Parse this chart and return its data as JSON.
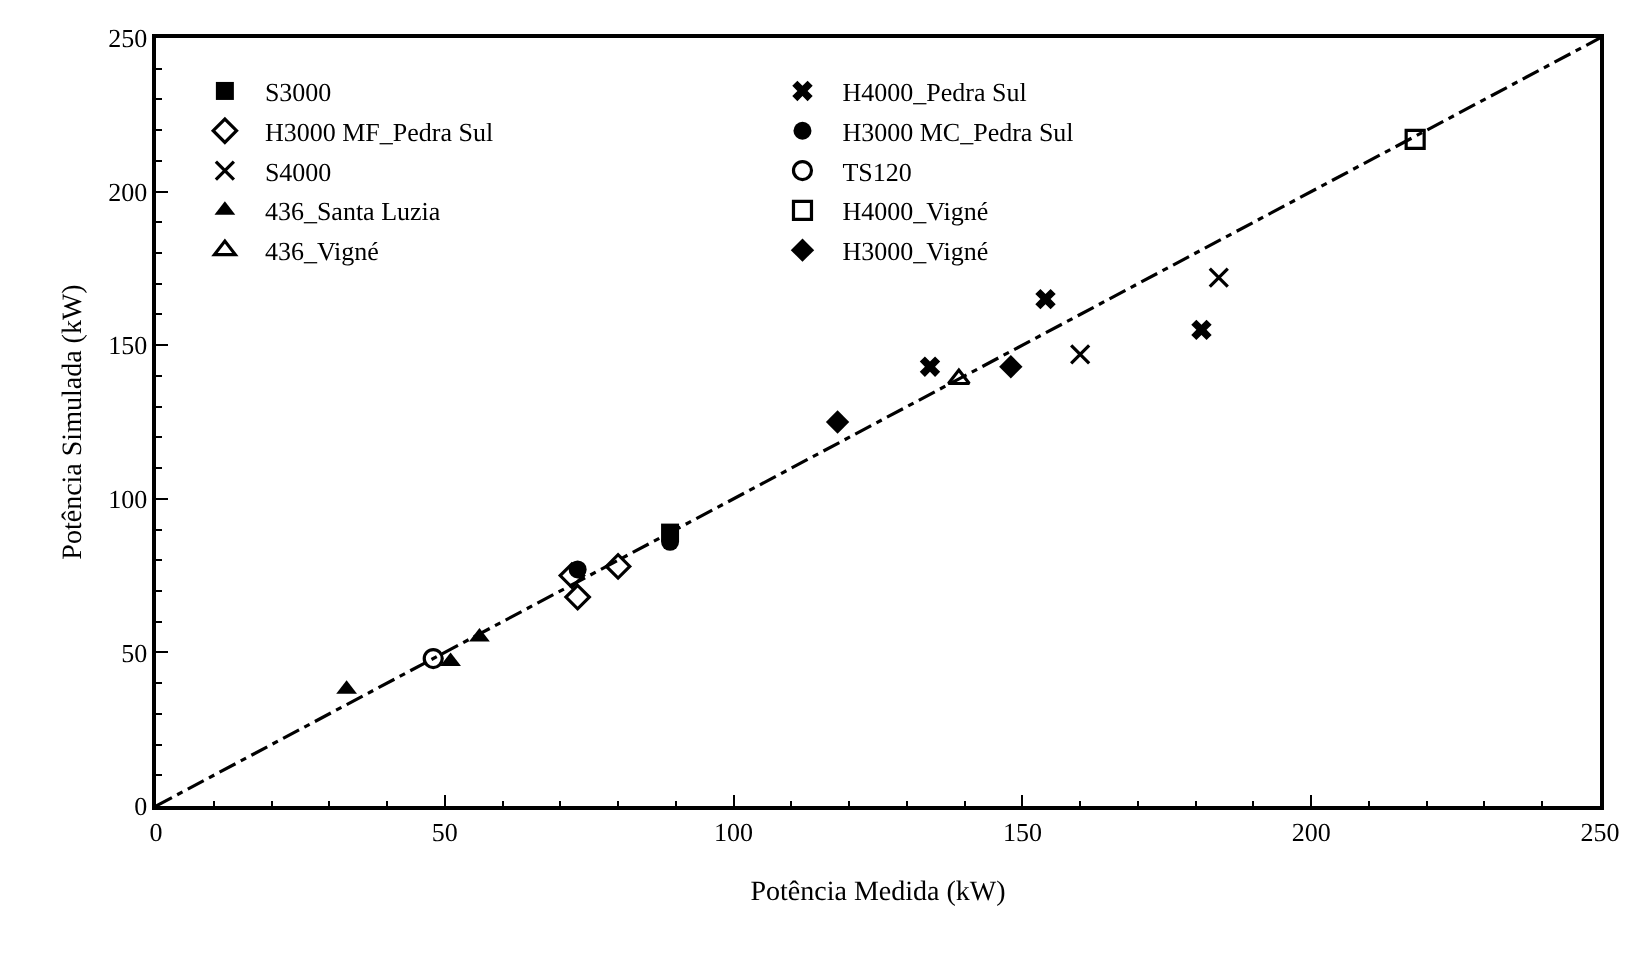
{
  "chart_data": {
    "type": "scatter",
    "xlabel": "Potência Medida (kW)",
    "ylabel": "Potência Simulada (kW)",
    "xlim": [
      0,
      250
    ],
    "ylim": [
      0,
      250
    ],
    "xticks": [
      0,
      50,
      100,
      150,
      200,
      250
    ],
    "yticks": [
      0,
      50,
      100,
      150,
      200,
      250
    ],
    "legend": "top left",
    "series": [
      {
        "name": "S3000",
        "color": "#000000",
        "marker": "square",
        "x": [
          89
        ],
        "values": [
          89
        ]
      },
      {
        "name": "H4000_Pedra Sul",
        "color": "#000000",
        "marker": "cross",
        "x": [
          134,
          154,
          181
        ],
        "values": [
          143,
          165,
          155
        ]
      },
      {
        "name": "H3000 MF_Pedra Sul",
        "color": "#000000",
        "marker": "diamond",
        "x": [
          72,
          73,
          80
        ],
        "values": [
          75,
          68,
          78
        ]
      },
      {
        "name": "H3000 MC_Pedra Sul",
        "color": "#000000",
        "marker": "circle",
        "x": [
          73,
          89
        ],
        "values": [
          77,
          86
        ]
      },
      {
        "name": "S4000",
        "color": "#000000",
        "marker": "cross",
        "x": [
          160,
          184
        ],
        "values": [
          147,
          172
        ]
      },
      {
        "name": "TS120",
        "color": "#000000",
        "marker": "circle",
        "x": [
          48
        ],
        "values": [
          48
        ]
      },
      {
        "name": "436_Santa Luzia",
        "color": "#000000",
        "marker": "triangle",
        "x": [
          33,
          51,
          56
        ],
        "values": [
          38,
          47,
          55
        ]
      },
      {
        "name": "H4000_Vigné",
        "color": "#000000",
        "marker": "square",
        "x": [
          218
        ],
        "values": [
          217
        ]
      },
      {
        "name": "436_Vigné",
        "color": "#000000",
        "marker": "triangle",
        "x": [
          139
        ],
        "values": [
          139
        ]
      },
      {
        "name": "H3000_Vigné",
        "color": "#000000",
        "marker": "diamond",
        "x": [
          118,
          148
        ],
        "values": [
          125,
          143
        ]
      },
      {
        "type": "line",
        "color": "#000000",
        "marker": "none",
        "line_style": "dashed",
        "x": [
          0,
          250
        ],
        "values": [
          0,
          250
        ]
      }
    ]
  }
}
